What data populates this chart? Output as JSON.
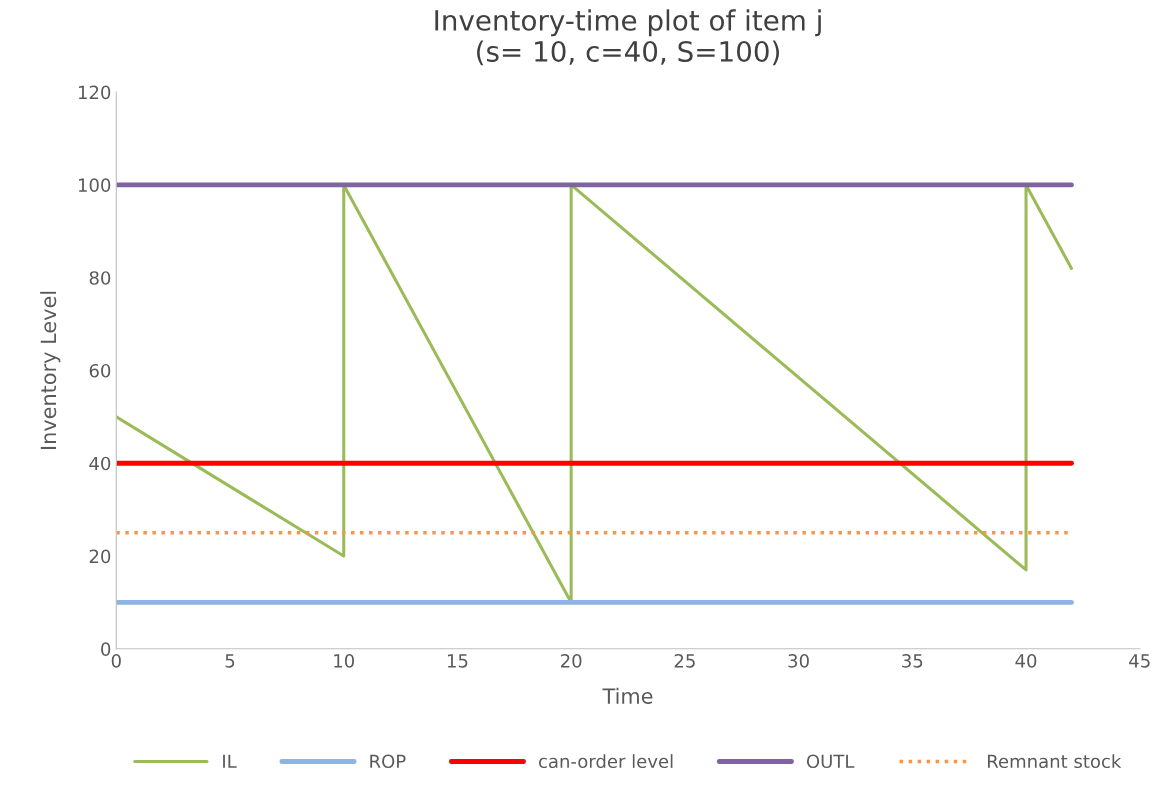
{
  "chart_data": {
    "type": "line",
    "title": "Inventory-time plot of item j\n(s= 10, c=40, S=100)",
    "xlabel": "Time",
    "ylabel": "Inventory Level",
    "xlim": [
      0,
      45
    ],
    "xticks": [
      0,
      5,
      10,
      15,
      20,
      25,
      30,
      35,
      40,
      45
    ],
    "ylim": [
      0,
      120
    ],
    "yticks": [
      0,
      20,
      40,
      60,
      80,
      100,
      120
    ],
    "grid": false,
    "legend": "bottom",
    "marker": "none",
    "series": [
      {
        "name": "IL",
        "color": "#9bbb59",
        "x": [
          0,
          10,
          10,
          20,
          20,
          40,
          40,
          42
        ],
        "values": [
          50,
          20,
          100,
          10,
          100,
          17,
          100,
          82
        ]
      },
      {
        "name": "ROP",
        "color": "#8eb4e3",
        "x": [
          0,
          42
        ],
        "values": [
          10,
          10
        ]
      },
      {
        "name": "can-order level",
        "color": "#ff0000",
        "x": [
          0,
          42
        ],
        "values": [
          40,
          40
        ]
      },
      {
        "name": "OUTL",
        "color": "#8064a2",
        "x": [
          0,
          42
        ],
        "values": [
          100,
          100
        ]
      },
      {
        "name": "Remnant stock",
        "color": "#f79646",
        "x": [
          0,
          42
        ],
        "values": [
          25,
          25
        ],
        "line_style": "dotted"
      }
    ]
  }
}
